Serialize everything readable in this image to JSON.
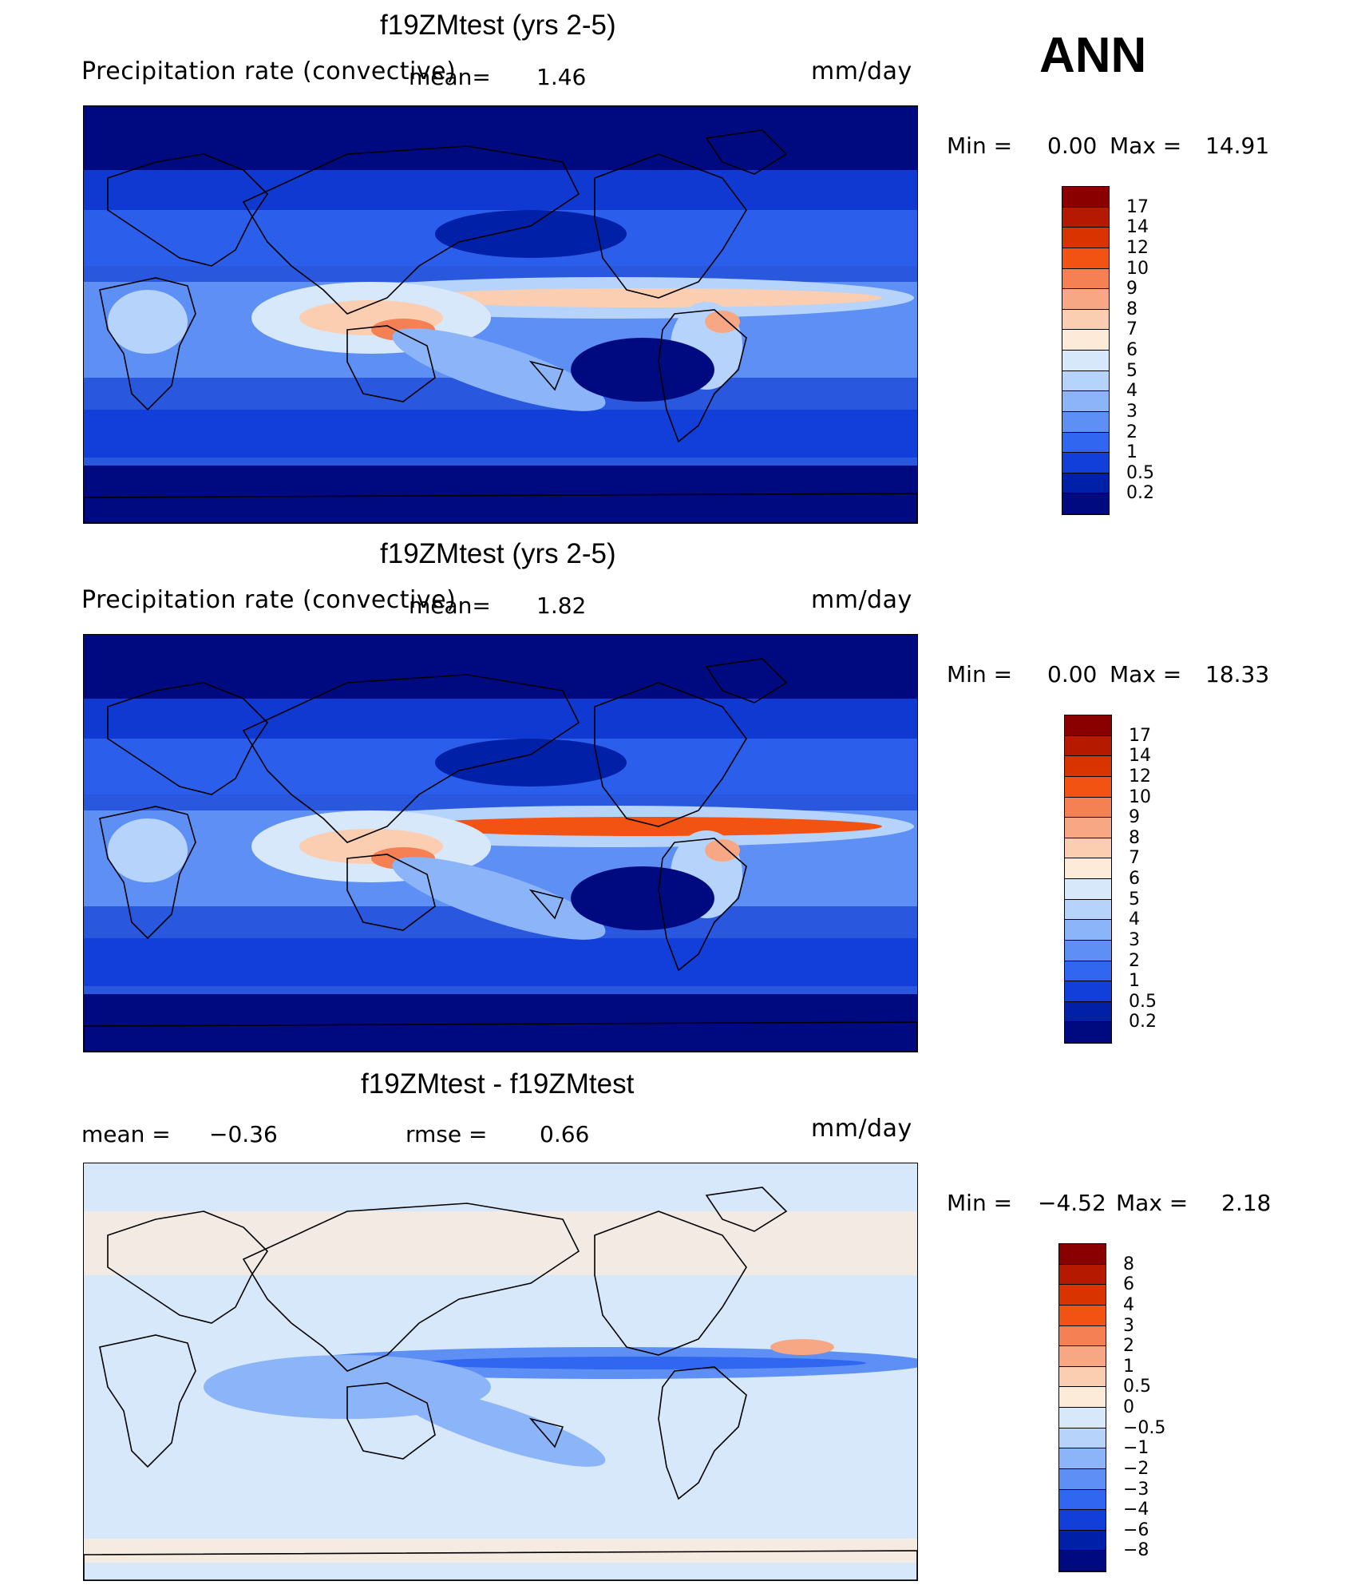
{
  "season": "ANN",
  "panels": [
    {
      "title": "f19ZMtest (yrs 2-5)",
      "left_label": "Precipitation  rate  (convective)",
      "stats": [
        {
          "label": "mean=",
          "value": "1.46"
        }
      ],
      "units": "mm/day",
      "minmax": {
        "min_label": "Min  =",
        "min": "0.00",
        "max_label": "Max  =",
        "max": "14.91"
      },
      "colorbar": {
        "labels": [
          "17",
          "14",
          "12",
          "10",
          "9",
          "8",
          "7",
          "6",
          "5",
          "4",
          "3",
          "2",
          "1",
          "0.5",
          "0.2"
        ],
        "colors": [
          "#8a0000",
          "#b51a00",
          "#d93300",
          "#f25313",
          "#f58053",
          "#f8a784",
          "#fbcdb1",
          "#fdebd9",
          "#d6e8fa",
          "#b6d4fb",
          "#8cb4f9",
          "#5e8ff5",
          "#3066f0",
          "#123ed9",
          "#0020a8",
          "#000a80"
        ]
      },
      "field": {
        "itcz_peak": 9.5,
        "warm_pool": 9,
        "background": 0.2
      }
    },
    {
      "title": "f19ZMtest (yrs 2-5)",
      "left_label": "Precipitation  rate  (convective)",
      "stats": [
        {
          "label": "mean=",
          "value": "1.82"
        }
      ],
      "units": "mm/day",
      "minmax": {
        "min_label": "Min  =",
        "min": "0.00",
        "max_label": "Max  =",
        "max": "18.33"
      },
      "colorbar": {
        "labels": [
          "17",
          "14",
          "12",
          "10",
          "9",
          "8",
          "7",
          "6",
          "5",
          "4",
          "3",
          "2",
          "1",
          "0.5",
          "0.2"
        ],
        "colors": [
          "#8a0000",
          "#b51a00",
          "#d93300",
          "#f25313",
          "#f58053",
          "#f8a784",
          "#fbcdb1",
          "#fdebd9",
          "#d6e8fa",
          "#b6d4fb",
          "#8cb4f9",
          "#5e8ff5",
          "#3066f0",
          "#123ed9",
          "#0020a8",
          "#000a80"
        ]
      },
      "field": {
        "itcz_peak": 12,
        "warm_pool": 11,
        "background": 0.3
      }
    },
    {
      "title": "f19ZMtest - f19ZMtest",
      "left_label": "",
      "stats": [
        {
          "label": "mean  =",
          "value": "−0.36"
        },
        {
          "label": "rmse  =",
          "value": "0.66"
        }
      ],
      "units": "mm/day",
      "minmax": {
        "min_label": "Min  =",
        "min": "−4.52",
        "max_label": "Max  =",
        "max": "2.18"
      },
      "colorbar": {
        "labels": [
          "8",
          "6",
          "4",
          "3",
          "2",
          "1",
          "0.5",
          "0",
          "−0.5",
          "−1",
          "−2",
          "−3",
          "−4",
          "−6",
          "−8"
        ],
        "colors": [
          "#8a0000",
          "#b51a00",
          "#d93300",
          "#f25313",
          "#f58053",
          "#f8a784",
          "#fbcdb1",
          "#fdebd9",
          "#d6e8fa",
          "#b6d4fb",
          "#8cb4f9",
          "#5e8ff5",
          "#3066f0",
          "#123ed9",
          "#0020a8",
          "#000a80"
        ]
      },
      "field": {
        "itcz_peak": -1.5,
        "warm_pool": -1,
        "background": 0.1
      }
    }
  ]
}
